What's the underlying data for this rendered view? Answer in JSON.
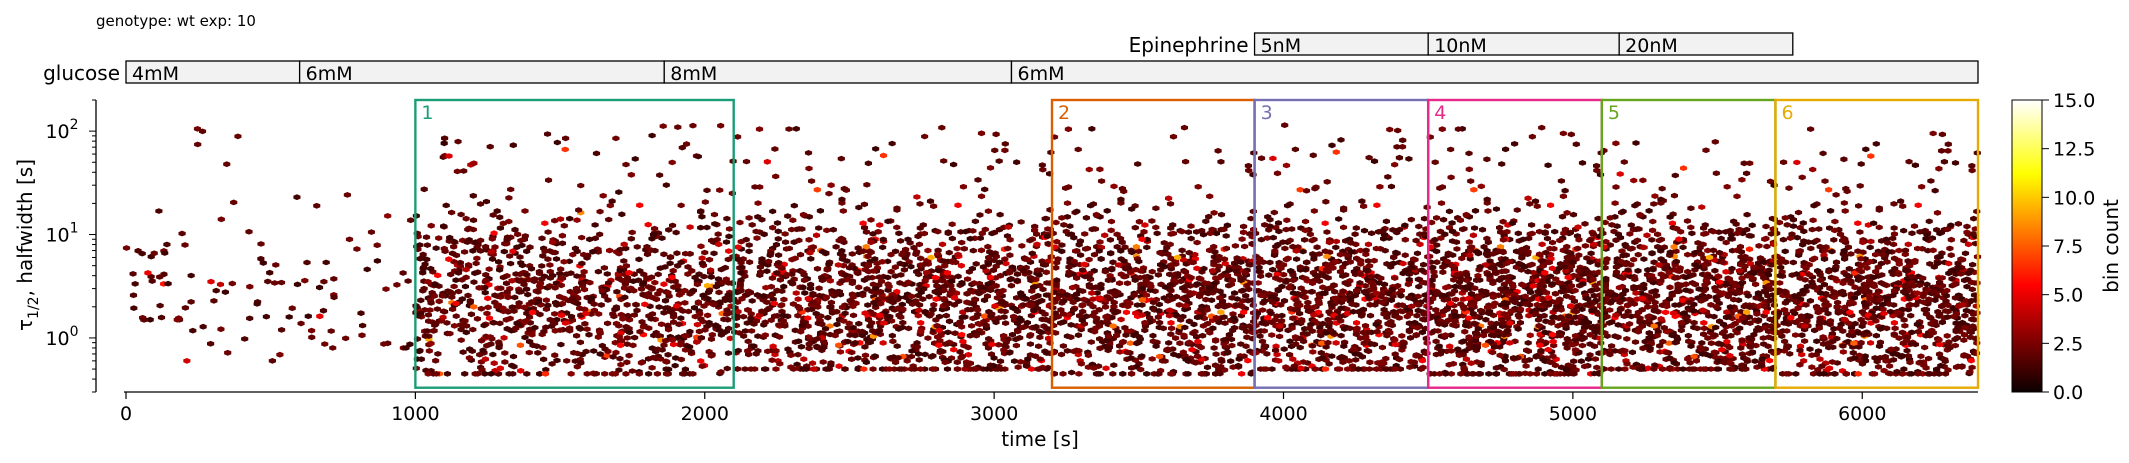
{
  "header": {
    "text": "genotype: wt  exp: 10"
  },
  "chart_data": {
    "type": "heatmap",
    "subtype": "hexbin",
    "xlabel": "time [s]",
    "ylabel_main": "τ",
    "ylabel_sub": "1/2",
    "ylabel_rest": ", halfwidth [s]",
    "xlim": [
      0,
      6400
    ],
    "ylim": [
      0.3,
      200
    ],
    "yscale": "log",
    "xticks": [
      {
        "v": 0,
        "label": "0"
      },
      {
        "v": 1000,
        "label": "1000"
      },
      {
        "v": 2000,
        "label": "2000"
      },
      {
        "v": 3000,
        "label": "3000"
      },
      {
        "v": 4000,
        "label": "4000"
      },
      {
        "v": 5000,
        "label": "5000"
      },
      {
        "v": 6000,
        "label": "6000"
      }
    ],
    "yticks": [
      {
        "v": 1,
        "base": "10",
        "exp": "0"
      },
      {
        "v": 10,
        "base": "10",
        "exp": "1"
      },
      {
        "v": 100,
        "base": "10",
        "exp": "2"
      }
    ],
    "colorbar": {
      "label": "bin count",
      "range": [
        0,
        15
      ],
      "ticks": [
        "0.0",
        "2.5",
        "5.0",
        "7.5",
        "10.0",
        "12.5",
        "15.0"
      ],
      "tick_values": [
        0,
        2.5,
        5,
        7.5,
        10,
        12.5,
        15
      ],
      "colormap": "hot"
    },
    "glucose": {
      "label": "glucose",
      "segments": [
        {
          "start": 0,
          "end": 600,
          "label": "4mM"
        },
        {
          "start": 600,
          "end": 1860,
          "label": "6mM"
        },
        {
          "start": 1860,
          "end": 3060,
          "label": "8mM"
        },
        {
          "start": 3060,
          "end": 6400,
          "label": "6mM"
        }
      ]
    },
    "epinephrine": {
      "label": "Epinephrine",
      "segments": [
        {
          "start": 3900,
          "end": 4500,
          "label": "5nM"
        },
        {
          "start": 4500,
          "end": 5160,
          "label": "10nM"
        },
        {
          "start": 5160,
          "end": 5760,
          "label": "20nM"
        }
      ]
    },
    "regions": [
      {
        "label": "1",
        "start": 1000,
        "end": 2100,
        "color": "#1b9e77"
      },
      {
        "label": "2",
        "start": 3200,
        "end": 3900,
        "color": "#d95f02"
      },
      {
        "label": "3",
        "start": 3900,
        "end": 4500,
        "color": "#7570b3"
      },
      {
        "label": "4",
        "start": 4500,
        "end": 5100,
        "color": "#e7298a"
      },
      {
        "label": "5",
        "start": 5100,
        "end": 5700,
        "color": "#66a61e"
      },
      {
        "label": "6",
        "start": 5700,
        "end": 6400,
        "color": "#e6ab02"
      }
    ],
    "density": [
      {
        "x0": 0,
        "x1": 200,
        "n": 30,
        "lo": 1.5,
        "hi": 20
      },
      {
        "x0": 200,
        "x1": 600,
        "n": 45,
        "lo": 0.6,
        "hi": 110
      },
      {
        "x0": 600,
        "x1": 1000,
        "n": 40,
        "lo": 0.8,
        "hi": 30
      },
      {
        "x0": 1000,
        "x1": 2100,
        "n": 1000,
        "lo": 0.45,
        "hi": 130
      },
      {
        "x0": 2100,
        "x1": 3200,
        "n": 1200,
        "lo": 0.5,
        "hi": 110
      },
      {
        "x0": 3200,
        "x1": 3900,
        "n": 800,
        "lo": 0.45,
        "hi": 110
      },
      {
        "x0": 3900,
        "x1": 4500,
        "n": 750,
        "lo": 0.5,
        "hi": 120
      },
      {
        "x0": 4500,
        "x1": 5100,
        "n": 900,
        "lo": 0.45,
        "hi": 110
      },
      {
        "x0": 5100,
        "x1": 5700,
        "n": 800,
        "lo": 0.5,
        "hi": 80
      },
      {
        "x0": 5700,
        "x1": 6400,
        "n": 900,
        "lo": 0.45,
        "hi": 110
      }
    ]
  }
}
